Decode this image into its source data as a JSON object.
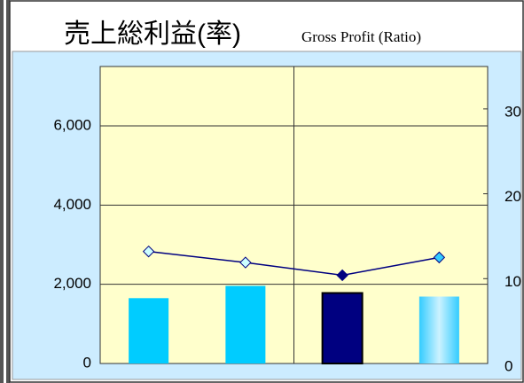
{
  "chart_data": {
    "type": "bar-line",
    "title": "売上総利益(率)",
    "subtitle": "Gross Profit (Ratio)",
    "categories": [
      null,
      null,
      null,
      null
    ],
    "ylim": [
      0,
      7500
    ],
    "yticks": [
      0,
      {
        "value": 2000,
        "label": "2,000"
      },
      {
        "value": 4000,
        "label": "4,000"
      },
      {
        "value": 6000,
        "label": "6,000"
      }
    ],
    "y2lim": [
      0,
      35
    ],
    "y2ticks": [
      0,
      10,
      20,
      30
    ],
    "grid": true,
    "series": [
      {
        "type": "bar",
        "values": [
          1650,
          1960,
          1780,
          1690
        ],
        "colors": [
          "#00ccff",
          "#00ccff",
          "#000080",
          "#66ccff"
        ]
      },
      {
        "type": "line",
        "axis": "y2",
        "color": "#000080",
        "values": [
          13.2,
          11.9,
          10.4,
          12.5
        ],
        "marker_colors": [
          "#ccffff",
          "#ccffff",
          "#000080",
          "#33ccff"
        ]
      }
    ]
  }
}
